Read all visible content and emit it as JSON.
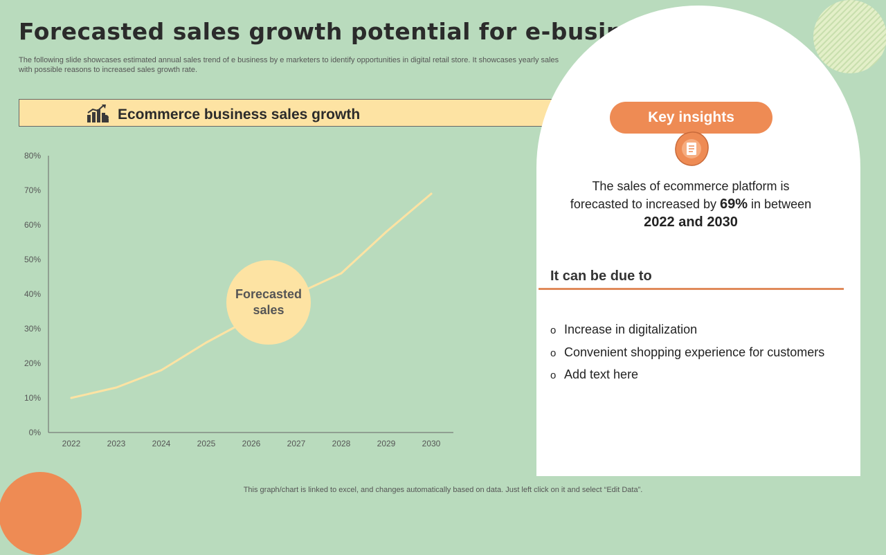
{
  "header": {
    "title": "Forecasted sales growth potential for e-business",
    "subtitle": "The following slide showcases estimated annual sales trend of e business by e marketers to identify opportunities in digital retail store. It showcases yearly sales with possible reasons to increased sales growth rate."
  },
  "banner": {
    "label": "Ecommerce business sales growth",
    "icon": "bar-chart-growth-icon"
  },
  "chart_data": {
    "type": "line",
    "categories": [
      "2022",
      "2023",
      "2024",
      "2025",
      "2026",
      "2027",
      "2028",
      "2029",
      "2030"
    ],
    "series": [
      {
        "name": "",
        "values": [
          10,
          13,
          18,
          26,
          33,
          40,
          46,
          58,
          69
        ],
        "color": "#fde3a3"
      }
    ],
    "ylim": [
      0,
      80
    ],
    "yticks": [
      0,
      10,
      20,
      30,
      40,
      50,
      60,
      70,
      80
    ],
    "ytick_format": "percent",
    "grid": false,
    "annotation": "Forecasted sales"
  },
  "insights": {
    "button_label": "Key insights",
    "icon": "document-icon",
    "summary_part1": "The sales of ecommerce platform is forecasted to increased by ",
    "summary_percent": "69%",
    "summary_part2": " in between ",
    "summary_years": "2022 and 2030",
    "due_title": "It can be due to",
    "reasons": [
      "Increase in digitalization",
      "Convenient shopping experience for customers",
      "Add text here"
    ],
    "bullet": "o"
  },
  "footer": {
    "note": "This graph/chart is linked to excel,  and changes automatically based on data. Just left click on it and select “Edit Data”."
  },
  "colors": {
    "background": "#b9dbbd",
    "accent_orange": "#ee8b54",
    "accent_yellow": "#fde3a3"
  }
}
